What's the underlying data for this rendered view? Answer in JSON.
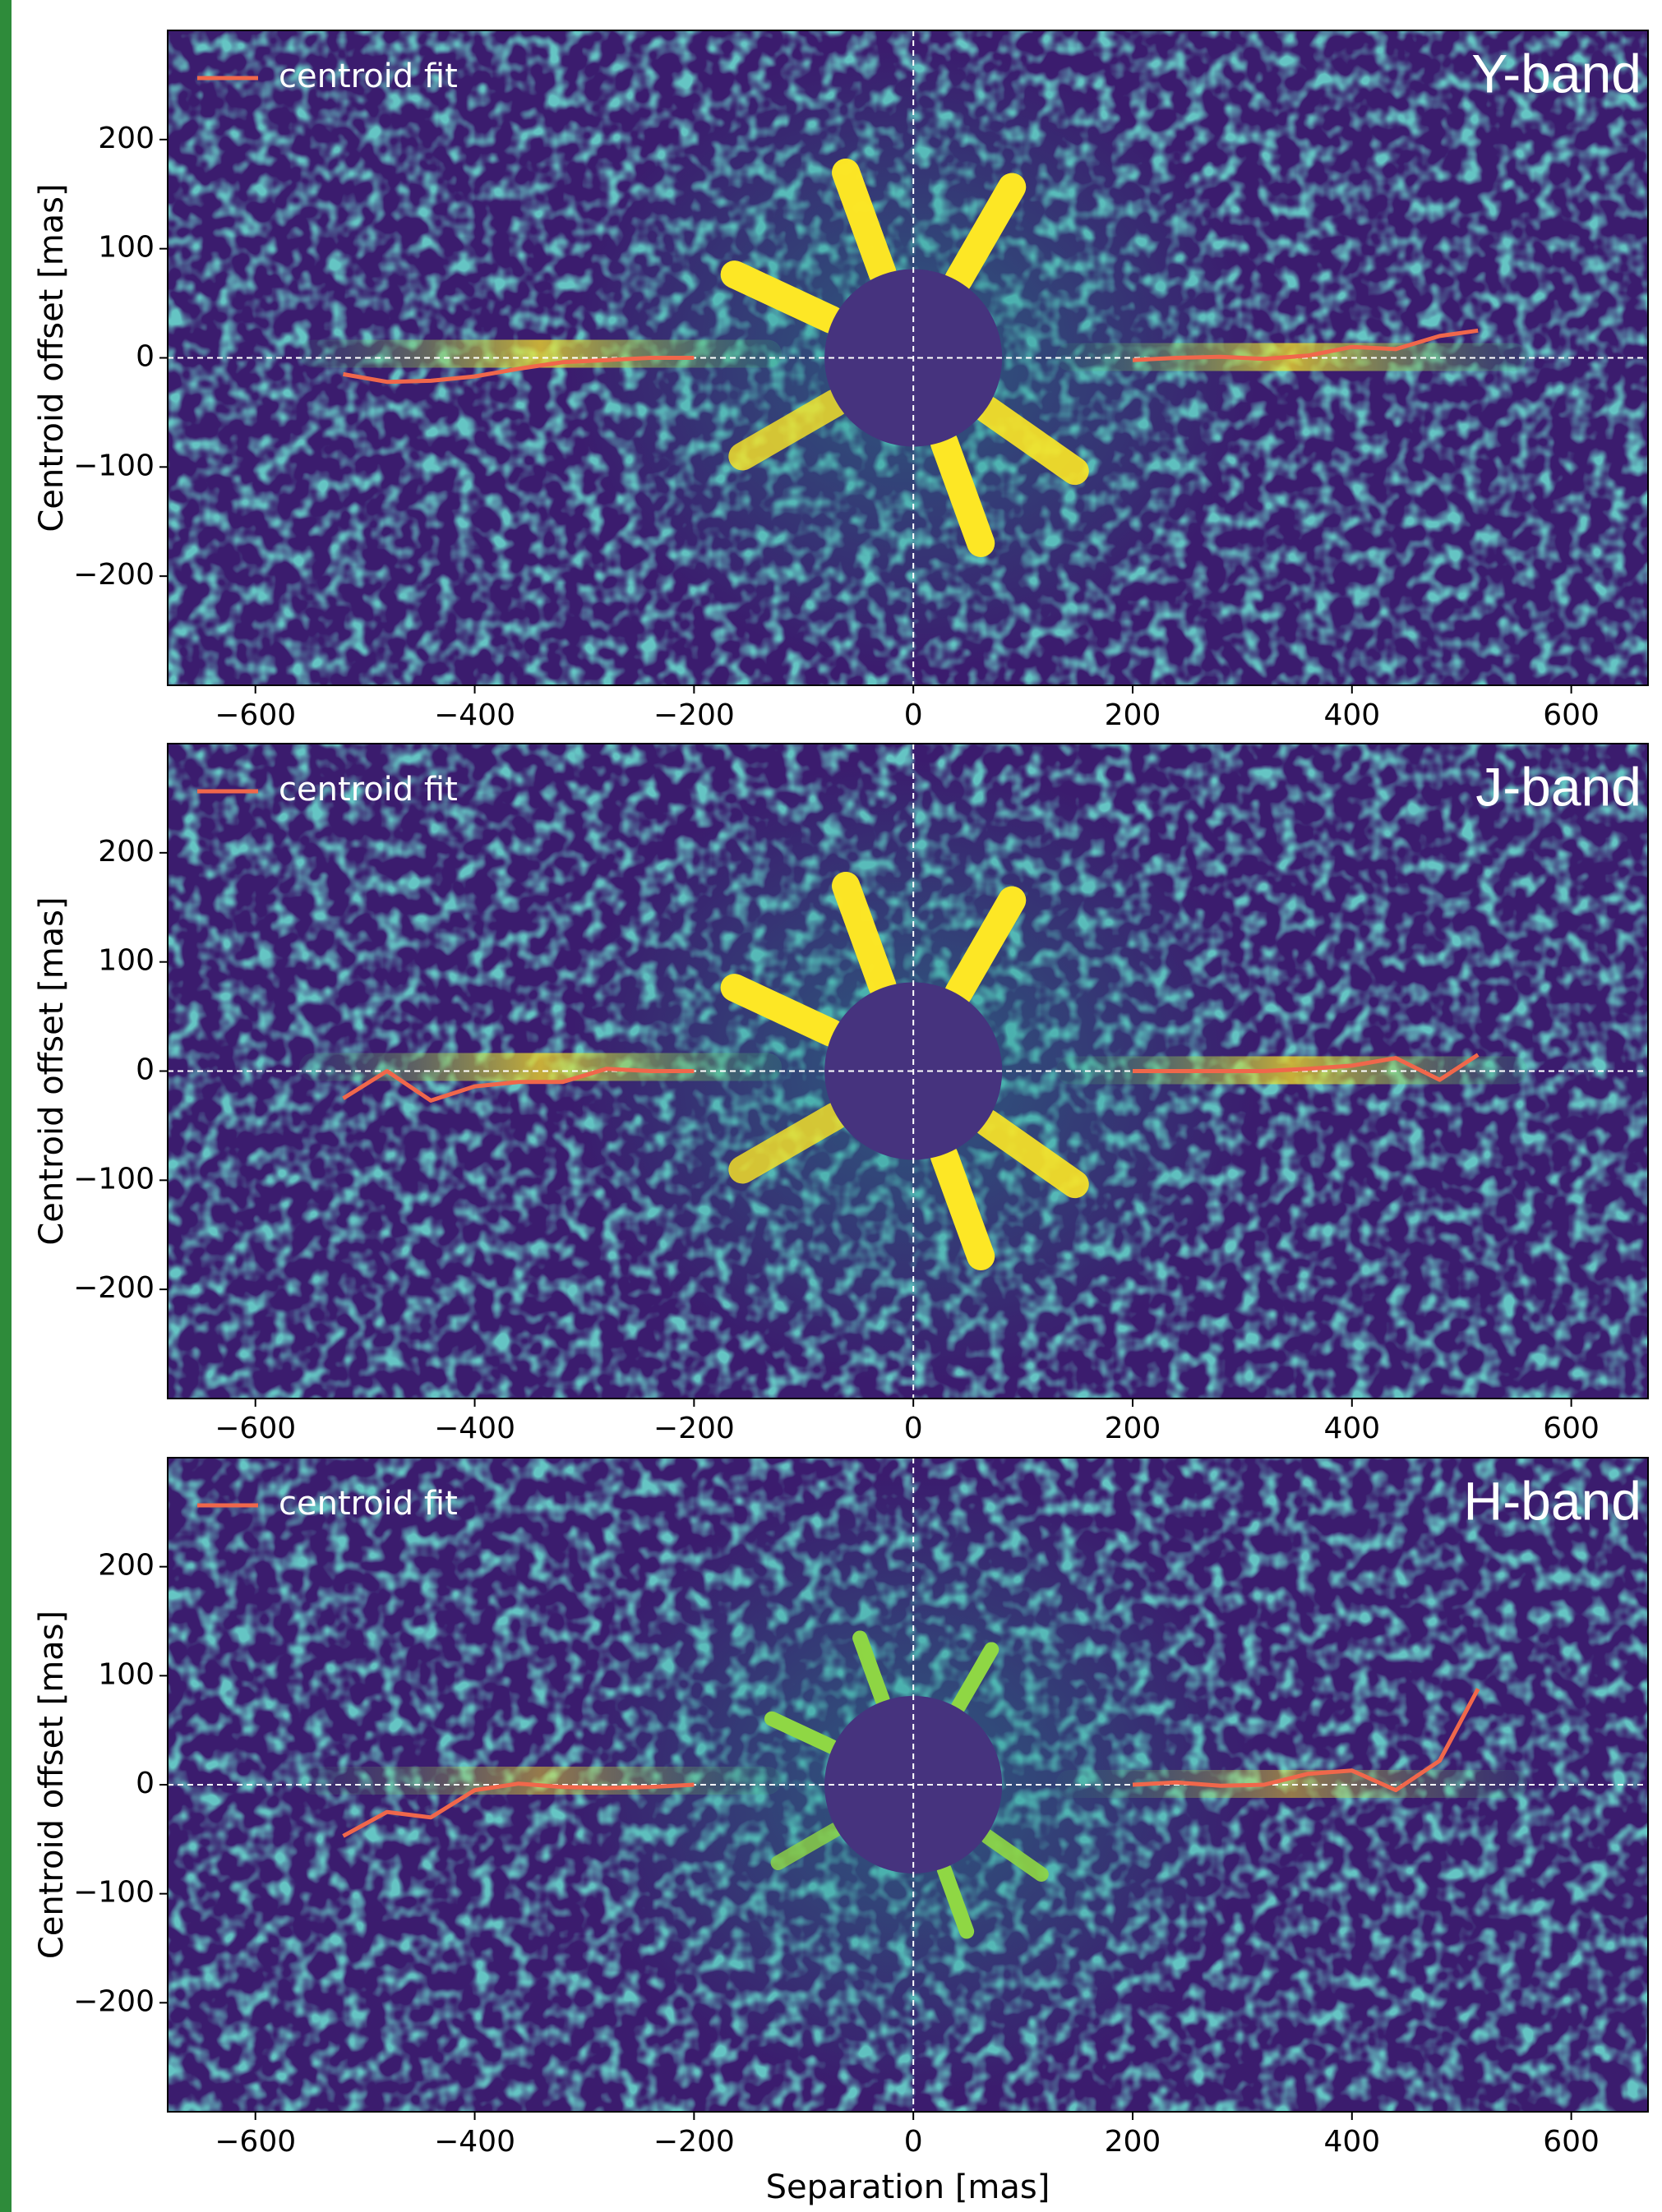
{
  "chart_data": [
    {
      "type": "line",
      "panel_label": "Y-band",
      "ylabel": "Centroid offset [mas]",
      "x": [
        -520,
        -480,
        -440,
        -400,
        -360,
        -320,
        -280,
        -240,
        -200,
        0,
        200,
        240,
        280,
        320,
        360,
        400,
        440,
        480,
        515
      ],
      "series": [
        {
          "name": "centroid fit",
          "color": "#f0674b",
          "values": [
            -15,
            -22,
            -21,
            -17,
            -10,
            -4,
            -2,
            0,
            0,
            null,
            -2,
            0,
            1,
            -1,
            2,
            10,
            8,
            20,
            25
          ]
        }
      ],
      "xlim": [
        -680,
        670
      ],
      "ylim": [
        -300,
        300
      ],
      "xticks": [
        {
          "value": -600,
          "label": "−600"
        },
        {
          "value": -400,
          "label": "−400"
        },
        {
          "value": -200,
          "label": "−200"
        },
        0,
        200,
        400,
        600
      ],
      "yticks": [
        {
          "value": -200,
          "label": "−200"
        },
        {
          "value": -100,
          "label": "−100"
        },
        0,
        100,
        200
      ],
      "legend": "upper left"
    },
    {
      "type": "line",
      "panel_label": "J-band",
      "ylabel": "Centroid offset [mas]",
      "x": [
        -520,
        -480,
        -440,
        -400,
        -360,
        -320,
        -280,
        -240,
        -200,
        0,
        200,
        240,
        280,
        320,
        360,
        400,
        440,
        480,
        515
      ],
      "series": [
        {
          "name": "centroid fit",
          "color": "#f0674b",
          "values": [
            -25,
            0,
            -27,
            -14,
            -10,
            -10,
            2,
            0,
            0,
            null,
            0,
            0,
            0,
            0,
            2,
            5,
            12,
            -8,
            15
          ]
        }
      ],
      "xlim": [
        -680,
        670
      ],
      "ylim": [
        -300,
        300
      ],
      "xticks": [
        {
          "value": -600,
          "label": "−600"
        },
        {
          "value": -400,
          "label": "−400"
        },
        {
          "value": -200,
          "label": "−200"
        },
        0,
        200,
        400,
        600
      ],
      "yticks": [
        {
          "value": -200,
          "label": "−200"
        },
        {
          "value": -100,
          "label": "−100"
        },
        0,
        100,
        200
      ],
      "legend": "upper left"
    },
    {
      "type": "line",
      "panel_label": "H-band",
      "ylabel": "Centroid offset [mas]",
      "xlabel": "Separation [mas]",
      "x": [
        -520,
        -480,
        -440,
        -400,
        -360,
        -320,
        -280,
        -240,
        -200,
        0,
        200,
        240,
        280,
        320,
        360,
        400,
        440,
        480,
        515
      ],
      "series": [
        {
          "name": "centroid fit",
          "color": "#f0674b",
          "values": [
            -47,
            -25,
            -30,
            -5,
            1,
            -2,
            -3,
            -2,
            0,
            null,
            0,
            2,
            -1,
            0,
            10,
            13,
            -5,
            22,
            88
          ]
        }
      ],
      "xlim": [
        -680,
        670
      ],
      "ylim": [
        -300,
        300
      ],
      "xticks": [
        {
          "value": -600,
          "label": "−600"
        },
        {
          "value": -400,
          "label": "−400"
        },
        {
          "value": -200,
          "label": "−200"
        },
        0,
        200,
        400,
        600
      ],
      "yticks": [
        {
          "value": -200,
          "label": "−200"
        },
        {
          "value": -100,
          "label": "−100"
        },
        0,
        100,
        200
      ],
      "legend": "upper left"
    }
  ]
}
